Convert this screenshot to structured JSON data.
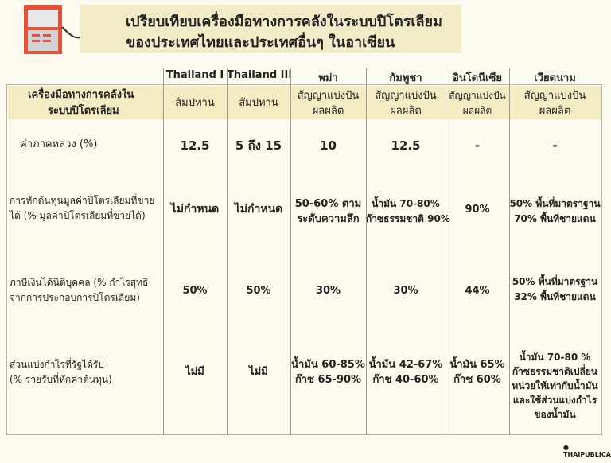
{
  "title": {
    "line1": "เปรียบเทียบเครื่องมือทางการคลังในระบบปิโตรเลียม",
    "line2": "ของประเทศไทยและประเทศอื่นๆ ในอาเซียน"
  },
  "columns": [
    "Thailand I",
    "Thailand III",
    "พม่า",
    "กัมพูชา",
    "อินโดนีเซีย",
    "เวียดนาม"
  ],
  "header_row": {
    "label_line1": "เครื่องมือทางการคลังใน",
    "label_line2": "ระบบปิโตรเลียม",
    "cells": [
      [
        "สัมปทาน"
      ],
      [
        "สัมปทาน"
      ],
      [
        "สัญญาแบ่งปัน",
        "ผลผลิต"
      ],
      [
        "สัญญาแบ่งปัน",
        "ผลผลิต"
      ],
      [
        "สัญญาแบ่งปัน",
        "ผลผลิต"
      ],
      [
        "สัญญาแบ่งปัน",
        "ผลผลิต"
      ]
    ]
  },
  "rows": [
    {
      "label": [
        "ค่าภาคหลวง (%)"
      ],
      "cells": [
        [
          "12.5"
        ],
        [
          "5 ถึง 15"
        ],
        [
          "10"
        ],
        [
          "12.5"
        ],
        [
          "-"
        ],
        [
          "-"
        ]
      ]
    },
    {
      "label": [
        "การหักต้นทุนมูลค่าปิโตรเลียมที่ขาย",
        "ได้ (% มูลค่าปิโตรเลียมที่ขายได้)"
      ],
      "cells": [
        [
          "ไม่กำหนด"
        ],
        [
          "ไม่กำหนด"
        ],
        [
          "50-60% ตาม",
          "ระดับความลึก"
        ],
        [
          "น้ำมัน 70-80%",
          "ก๊าซธรรมชาติ 90%"
        ],
        [
          "90%"
        ],
        [
          "50% พื้นที่มาตราฐาน",
          "70% พื้นที่ชายแดน"
        ]
      ]
    },
    {
      "label": [
        "ภาษีเงินได้นิติบุคคล (% กำไรสุทธิ",
        "จากการประกอบการปิโตรเลียม)"
      ],
      "cells": [
        [
          "50%"
        ],
        [
          "50%"
        ],
        [
          "30%"
        ],
        [
          "30%"
        ],
        [
          "44%"
        ],
        [
          "50% พื้นที่มาตรฐาน",
          "32% พื้นที่ชายแดน"
        ]
      ]
    },
    {
      "label": [
        "ส่วนแบ่งกำไรที่รัฐได้รับ",
        "(% รายรับที่หักค่าต้นทุน)"
      ],
      "cells": [
        [
          "ไม่มี"
        ],
        [
          "ไม่มี"
        ],
        [
          "น้ำมัน 60-85%",
          "ก๊าซ 65-90%"
        ],
        [
          "น้ำมัน 42-67%",
          "ก๊าซ 40-60%"
        ],
        [
          "น้ำมัน 65%",
          "ก๊าซ 60%"
        ],
        [
          "น้ำมัน 70-80 %",
          "ก๊าซธรรมชาติเปลี่ยน",
          "หน่วยให้เท่ากับน้ำมัน",
          "และใช้ส่วนแบ่งกำไร",
          "ของน้ำมัน"
        ]
      ]
    }
  ],
  "logo": "THAIPUBLICA",
  "colors": {
    "title_band": "#f1ebc8",
    "header_band": "#f4edc4",
    "background": "#fdfbf0"
  }
}
